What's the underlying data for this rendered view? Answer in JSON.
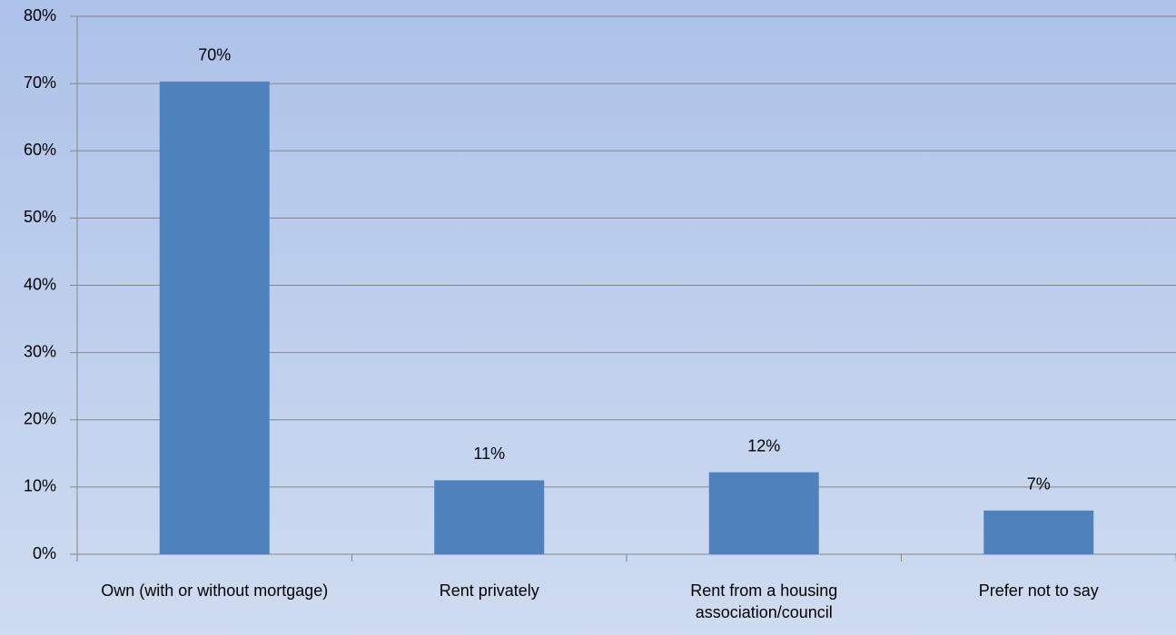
{
  "chart_data": {
    "type": "bar",
    "categories": [
      "Own (with or without mortgage)",
      "Rent privately",
      "Rent from a housing association/council",
      "Prefer not to say"
    ],
    "values": [
      70.3,
      11,
      12.2,
      6.5
    ],
    "value_labels": [
      "70%",
      "11%",
      "12%",
      "7%"
    ],
    "color": "#4f81bd",
    "ylim": [
      0,
      80
    ],
    "yticks": [
      {
        "value": 0,
        "label": "0%"
      },
      {
        "value": 10,
        "label": "10%"
      },
      {
        "value": 20,
        "label": "20%"
      },
      {
        "value": 30,
        "label": "30%"
      },
      {
        "value": 40,
        "label": "40%"
      },
      {
        "value": 50,
        "label": "50%"
      },
      {
        "value": 60,
        "label": "60%"
      },
      {
        "value": 70,
        "label": "70%"
      },
      {
        "value": 80,
        "label": "80%"
      }
    ],
    "grid": true
  }
}
